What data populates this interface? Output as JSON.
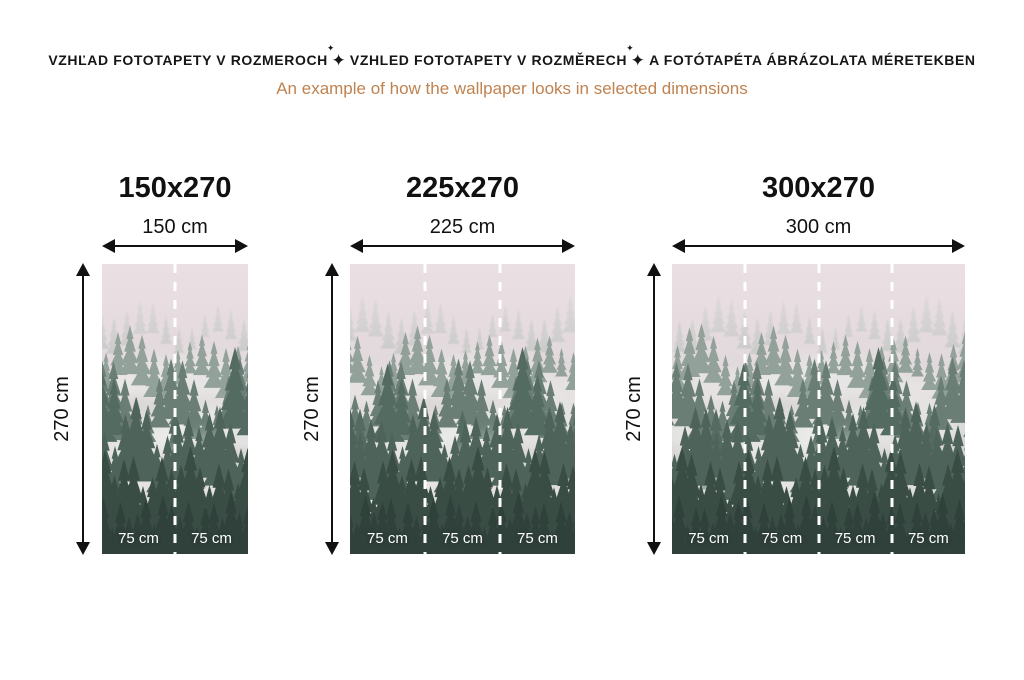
{
  "header": {
    "title_sk": "VZHĽAD FOTOTAPETY V ROZMEROCH",
    "title_cz": "VZHLED FOTOTAPETY V ROZMĚRECH",
    "title_hu": "A FOTÓTAPÉTA ÁBRÁZOLATA MÉRETEKBEN",
    "separator": "✦",
    "subtitle": "An example of how the wallpaper looks in selected dimensions",
    "title_color": "#161616",
    "subtitle_color": "#c0824f"
  },
  "panels": [
    {
      "title": "150x270",
      "width_label": "150 cm",
      "height_label": "270 cm",
      "sections": [
        "75 cm",
        "75 cm"
      ]
    },
    {
      "title": "225x270",
      "width_label": "225 cm",
      "height_label": "270 cm",
      "sections": [
        "75 cm",
        "75 cm",
        "75 cm"
      ]
    },
    {
      "title": "300x270",
      "width_label": "300 cm",
      "height_label": "270 cm",
      "sections": [
        "75 cm",
        "75 cm",
        "75 cm",
        "75 cm"
      ]
    }
  ],
  "artwork": {
    "name": "misty-pine-forest-photo",
    "palette": {
      "sky_top": "#e6dce0",
      "sky_bottom": "#c9cdc7",
      "fog": "#eff0ee",
      "trees_far": "#a8b4ae",
      "trees_mid": "#64796f",
      "trees_near": "#31453d",
      "trees_darkest": "#263832",
      "seam_line": "#ffffff",
      "label_text": "#ffffff"
    }
  }
}
